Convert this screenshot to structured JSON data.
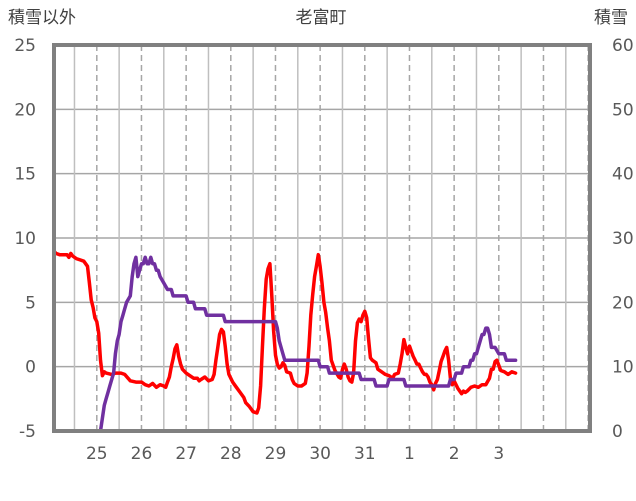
{
  "chart_data": {
    "type": "line",
    "title": "老富町",
    "left_axis_label": "積雪以外",
    "right_axis_label": "積雪",
    "left_ylim": [
      -5,
      25
    ],
    "left_yticks": [
      -5,
      0,
      5,
      10,
      15,
      20,
      25
    ],
    "right_ylim": [
      0,
      60
    ],
    "right_yticks": [
      0,
      10,
      20,
      30,
      40,
      50,
      60
    ],
    "x_range_hours": [
      -11,
      277
    ],
    "x_day_ticks": [
      {
        "label": "25",
        "hour": 12
      },
      {
        "label": "26",
        "hour": 36
      },
      {
        "label": "27",
        "hour": 60
      },
      {
        "label": "28",
        "hour": 84
      },
      {
        "label": "29",
        "hour": 108
      },
      {
        "label": "30",
        "hour": 132
      },
      {
        "label": "31",
        "hour": 156
      },
      {
        "label": "1",
        "hour": 180
      },
      {
        "label": "2",
        "hour": 204
      },
      {
        "label": "3",
        "hour": 228
      }
    ],
    "grid": true,
    "series": [
      {
        "color": "#ff0000",
        "axis": "left",
        "points": [
          [
            -11,
            9.0
          ],
          [
            -10,
            8.8
          ],
          [
            -8,
            8.7
          ],
          [
            -4,
            8.7
          ],
          [
            -3,
            8.5
          ],
          [
            -2,
            8.8
          ],
          [
            -1,
            8.6
          ],
          [
            1,
            8.4
          ],
          [
            3,
            8.3
          ],
          [
            5,
            8.2
          ],
          [
            7,
            7.8
          ],
          [
            8,
            6.5
          ],
          [
            9,
            5.2
          ],
          [
            10,
            4.6
          ],
          [
            11,
            3.8
          ],
          [
            12,
            3.5
          ],
          [
            13,
            2.6
          ],
          [
            14,
            0.5
          ],
          [
            15,
            -0.7
          ],
          [
            16,
            -0.4
          ],
          [
            17,
            -0.5
          ],
          [
            20,
            -0.6
          ],
          [
            22,
            -0.5
          ],
          [
            25,
            -0.5
          ],
          [
            27,
            -0.6
          ],
          [
            30,
            -1.1
          ],
          [
            33,
            -1.2
          ],
          [
            36,
            -1.2
          ],
          [
            38,
            -1.4
          ],
          [
            40,
            -1.5
          ],
          [
            42,
            -1.3
          ],
          [
            44,
            -1.6
          ],
          [
            46,
            -1.4
          ],
          [
            48,
            -1.5
          ],
          [
            49,
            -1.6
          ],
          [
            50,
            -1.2
          ],
          [
            51,
            -0.8
          ],
          [
            52,
            0.0
          ],
          [
            53,
            0.6
          ],
          [
            54,
            1.4
          ],
          [
            55,
            1.7
          ],
          [
            56,
            0.8
          ],
          [
            57,
            0.2
          ],
          [
            58,
            -0.2
          ],
          [
            60,
            -0.5
          ],
          [
            62,
            -0.7
          ],
          [
            64,
            -0.9
          ],
          [
            66,
            -0.9
          ],
          [
            67,
            -1.1
          ],
          [
            68,
            -1.0
          ],
          [
            70,
            -0.8
          ],
          [
            72,
            -1.1
          ],
          [
            74,
            -1.0
          ],
          [
            75,
            -0.6
          ],
          [
            76,
            0.5
          ],
          [
            77,
            1.5
          ],
          [
            78,
            2.5
          ],
          [
            79,
            2.9
          ],
          [
            80,
            2.7
          ],
          [
            81,
            1.6
          ],
          [
            82,
            0.2
          ],
          [
            83,
            -0.6
          ],
          [
            85,
            -1.2
          ],
          [
            87,
            -1.6
          ],
          [
            89,
            -2.0
          ],
          [
            91,
            -2.4
          ],
          [
            92,
            -2.8
          ],
          [
            94,
            -3.1
          ],
          [
            96,
            -3.5
          ],
          [
            98,
            -3.6
          ],
          [
            99,
            -3.2
          ],
          [
            100,
            -1.5
          ],
          [
            101,
            1.5
          ],
          [
            102,
            4.5
          ],
          [
            103,
            6.8
          ],
          [
            104,
            7.6
          ],
          [
            105,
            8.0
          ],
          [
            106,
            5.5
          ],
          [
            107,
            2.8
          ],
          [
            108,
            0.9
          ],
          [
            109,
            0.2
          ],
          [
            110,
            -0.1
          ],
          [
            111,
            0.0
          ],
          [
            112,
            0.3
          ],
          [
            113,
            0.1
          ],
          [
            114,
            -0.4
          ],
          [
            116,
            -0.5
          ],
          [
            117,
            -1.0
          ],
          [
            118,
            -1.3
          ],
          [
            120,
            -1.5
          ],
          [
            122,
            -1.5
          ],
          [
            124,
            -1.3
          ],
          [
            125,
            -0.5
          ],
          [
            126,
            1.6
          ],
          [
            127,
            4.0
          ],
          [
            128,
            5.6
          ],
          [
            129,
            7.0
          ],
          [
            130,
            7.8
          ],
          [
            131,
            8.7
          ],
          [
            132,
            7.8
          ],
          [
            133,
            6.5
          ],
          [
            134,
            5.0
          ],
          [
            135,
            4.2
          ],
          [
            136,
            3.0
          ],
          [
            137,
            2.0
          ],
          [
            138,
            0.5
          ],
          [
            140,
            -0.3
          ],
          [
            142,
            -0.8
          ],
          [
            143,
            -0.9
          ],
          [
            144,
            -0.2
          ],
          [
            145,
            0.2
          ],
          [
            146,
            -0.2
          ],
          [
            147,
            -0.8
          ],
          [
            148,
            -1.1
          ],
          [
            149,
            -1.2
          ],
          [
            150,
            -0.5
          ],
          [
            151,
            2.0
          ],
          [
            152,
            3.4
          ],
          [
            153,
            3.7
          ],
          [
            154,
            3.5
          ],
          [
            155,
            4.0
          ],
          [
            156,
            4.3
          ],
          [
            157,
            3.8
          ],
          [
            158,
            2.2
          ],
          [
            159,
            0.7
          ],
          [
            160,
            0.5
          ],
          [
            162,
            0.3
          ],
          [
            163,
            -0.2
          ],
          [
            165,
            -0.4
          ],
          [
            167,
            -0.6
          ],
          [
            169,
            -0.7
          ],
          [
            171,
            -0.9
          ],
          [
            172,
            -0.6
          ],
          [
            174,
            -0.5
          ],
          [
            175,
            0.2
          ],
          [
            176,
            1.0
          ],
          [
            177,
            2.1
          ],
          [
            178,
            1.5
          ],
          [
            179,
            1.0
          ],
          [
            180,
            1.6
          ],
          [
            181,
            1.2
          ],
          [
            182,
            0.8
          ],
          [
            183,
            0.5
          ],
          [
            184,
            0.2
          ],
          [
            185,
            0.2
          ],
          [
            186,
            -0.1
          ],
          [
            187,
            -0.4
          ],
          [
            188,
            -0.6
          ],
          [
            189,
            -0.6
          ],
          [
            190,
            -0.8
          ],
          [
            191,
            -1.2
          ],
          [
            192,
            -1.4
          ],
          [
            193,
            -1.8
          ],
          [
            194,
            -1.3
          ],
          [
            195,
            -1.0
          ],
          [
            196,
            -0.3
          ],
          [
            197,
            0.4
          ],
          [
            198,
            0.8
          ],
          [
            199,
            1.2
          ],
          [
            200,
            1.5
          ],
          [
            201,
            0.5
          ],
          [
            202,
            -0.9
          ],
          [
            203,
            -1.4
          ],
          [
            204,
            -1.1
          ],
          [
            206,
            -1.7
          ],
          [
            208,
            -2.1
          ],
          [
            209,
            -1.9
          ],
          [
            210,
            -2.0
          ],
          [
            211,
            -1.9
          ],
          [
            213,
            -1.6
          ],
          [
            215,
            -1.5
          ],
          [
            217,
            -1.6
          ],
          [
            219,
            -1.4
          ],
          [
            221,
            -1.4
          ],
          [
            223,
            -0.9
          ],
          [
            224,
            -0.2
          ],
          [
            225,
            -0.2
          ],
          [
            226,
            0.4
          ],
          [
            227,
            0.5
          ],
          [
            228,
            0.1
          ],
          [
            229,
            -0.3
          ],
          [
            231,
            -0.4
          ],
          [
            233,
            -0.6
          ],
          [
            235,
            -0.4
          ],
          [
            237,
            -0.5
          ]
        ]
      },
      {
        "color": "#7030a0",
        "axis": "right",
        "points": [
          [
            -11,
            0
          ],
          [
            14,
            0
          ],
          [
            15,
            2
          ],
          [
            16,
            4
          ],
          [
            17,
            5
          ],
          [
            18,
            6
          ],
          [
            19,
            7
          ],
          [
            20,
            8
          ],
          [
            21,
            9
          ],
          [
            22,
            12
          ],
          [
            23,
            14
          ],
          [
            24,
            15
          ],
          [
            25,
            17
          ],
          [
            26,
            18
          ],
          [
            27,
            19
          ],
          [
            28,
            20
          ],
          [
            30,
            21
          ],
          [
            31,
            24
          ],
          [
            32,
            26
          ],
          [
            33,
            27
          ],
          [
            34,
            24
          ],
          [
            35,
            25
          ],
          [
            36,
            26
          ],
          [
            37,
            26
          ],
          [
            38,
            27
          ],
          [
            39,
            26
          ],
          [
            40,
            26
          ],
          [
            41,
            27
          ],
          [
            42,
            26
          ],
          [
            43,
            26
          ],
          [
            44,
            25
          ],
          [
            45,
            25
          ],
          [
            46,
            24
          ],
          [
            48,
            23
          ],
          [
            50,
            22
          ],
          [
            52,
            22
          ],
          [
            53,
            21
          ],
          [
            60,
            21
          ],
          [
            61,
            20
          ],
          [
            64,
            20
          ],
          [
            65,
            19
          ],
          [
            70,
            19
          ],
          [
            71,
            18
          ],
          [
            80,
            18
          ],
          [
            81,
            17
          ],
          [
            108,
            17
          ],
          [
            109,
            16
          ],
          [
            110,
            14
          ],
          [
            112,
            12
          ],
          [
            113,
            11
          ],
          [
            131,
            11
          ],
          [
            132,
            10
          ],
          [
            136,
            10
          ],
          [
            137,
            9
          ],
          [
            153,
            9
          ],
          [
            154,
            8
          ],
          [
            161,
            8
          ],
          [
            162,
            7
          ],
          [
            168,
            7
          ],
          [
            169,
            8
          ],
          [
            177,
            8
          ],
          [
            178,
            7
          ],
          [
            201,
            7
          ],
          [
            202,
            8
          ],
          [
            204,
            8
          ],
          [
            205,
            9
          ],
          [
            208,
            9
          ],
          [
            209,
            10
          ],
          [
            212,
            10
          ],
          [
            213,
            11
          ],
          [
            214,
            11
          ],
          [
            215,
            12
          ],
          [
            216,
            12
          ],
          [
            217,
            13
          ],
          [
            218,
            14
          ],
          [
            219,
            15
          ],
          [
            220,
            15
          ],
          [
            221,
            16
          ],
          [
            222,
            16
          ],
          [
            223,
            15
          ],
          [
            224,
            13
          ],
          [
            226,
            13
          ],
          [
            228,
            12
          ],
          [
            229,
            12
          ],
          [
            230,
            12
          ],
          [
            231,
            12
          ],
          [
            232,
            11
          ],
          [
            233,
            11
          ],
          [
            234,
            11
          ],
          [
            237,
            11
          ]
        ]
      }
    ]
  }
}
